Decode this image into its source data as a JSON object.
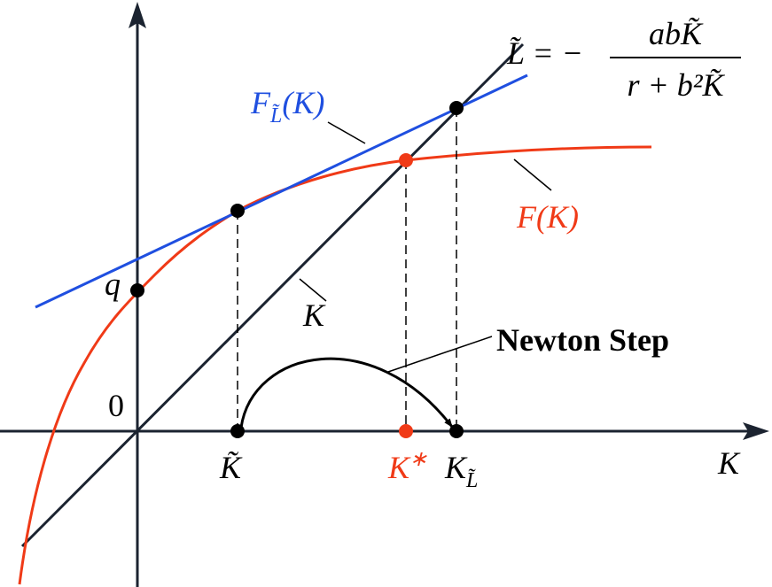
{
  "labels": {
    "tangent": {
      "main": "F",
      "sub": "L̃",
      "arg": "(K)"
    },
    "curve": "F(K)",
    "intercept": "q",
    "origin": "0",
    "diagonal": "K",
    "k_tilde": "K̃",
    "k_star": {
      "main": "K",
      "sup": "∗"
    },
    "k_l": {
      "main": "K",
      "sub": "L̃"
    },
    "x_axis": "K",
    "newton": "Newton Step",
    "formula": {
      "lhs": "L̃ = −",
      "numerator": "abK̃",
      "denominator": "r + b²K̃"
    }
  }
}
